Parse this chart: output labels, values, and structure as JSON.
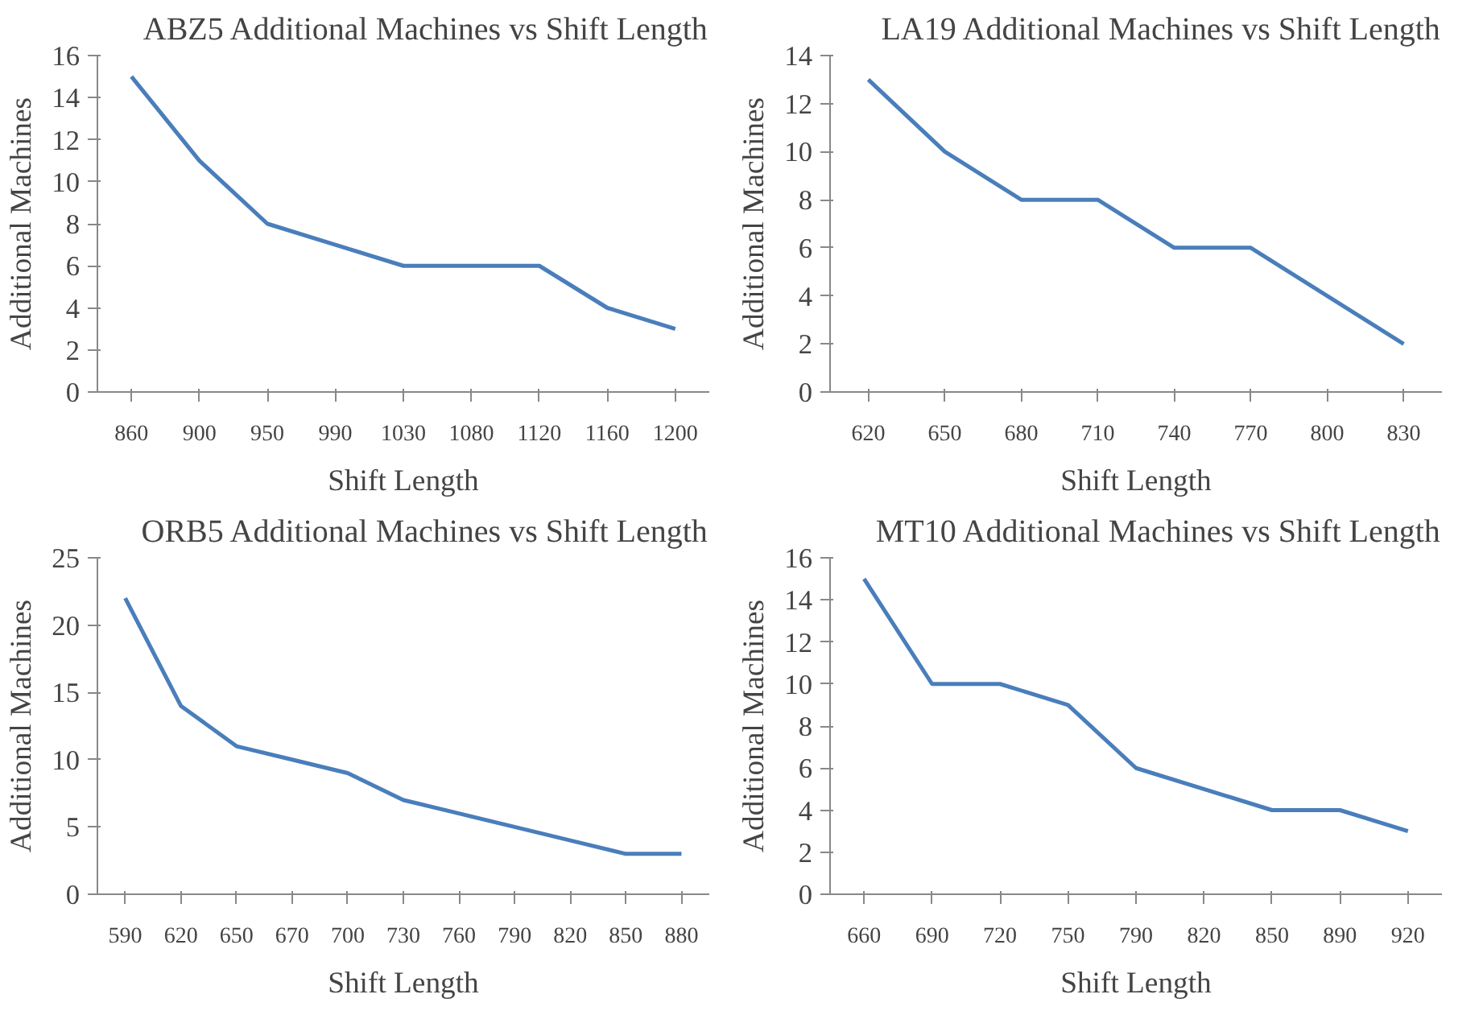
{
  "chart_data": [
    {
      "type": "line",
      "title": "ABZ5 Additional Machines vs Shift Length",
      "xlabel": "Shift Length",
      "ylabel": "Additional Machines",
      "categories": [
        "860",
        "900",
        "950",
        "990",
        "1030",
        "1080",
        "1120",
        "1160",
        "1200"
      ],
      "series": [
        {
          "color": "#4a7ebb",
          "values": [
            15,
            11,
            8,
            7,
            6,
            6,
            6,
            4,
            3
          ]
        }
      ],
      "ylim": [
        0,
        16
      ],
      "yticks": [
        0,
        2,
        4,
        6,
        8,
        10,
        12,
        14,
        16
      ],
      "grid": false,
      "marker": "none"
    },
    {
      "type": "line",
      "title": "LA19 Additional Machines vs Shift Length",
      "xlabel": "Shift Length",
      "ylabel": "Additional Machines",
      "categories": [
        "620",
        "650",
        "680",
        "710",
        "740",
        "770",
        "800",
        "830"
      ],
      "series": [
        {
          "color": "#4a7ebb",
          "values": [
            13,
            10,
            8,
            8,
            6,
            6,
            4,
            2
          ]
        }
      ],
      "ylim": [
        0,
        14
      ],
      "yticks": [
        0,
        2,
        4,
        6,
        8,
        10,
        12,
        14
      ],
      "grid": false,
      "marker": "none"
    },
    {
      "type": "line",
      "title": "ORB5 Additional Machines vs Shift Length",
      "xlabel": "Shift Length",
      "ylabel": "Additional Machines",
      "categories": [
        "590",
        "620",
        "650",
        "670",
        "700",
        "730",
        "760",
        "790",
        "820",
        "850",
        "880"
      ],
      "series": [
        {
          "color": "#4a7ebb",
          "values": [
            22,
            14,
            11,
            10,
            9,
            7,
            6,
            5,
            4,
            3,
            3
          ]
        }
      ],
      "ylim": [
        0,
        25
      ],
      "yticks": [
        0,
        5,
        10,
        15,
        20,
        25
      ],
      "grid": false,
      "marker": "none"
    },
    {
      "type": "line",
      "title": "MT10 Additional Machines vs Shift Length",
      "xlabel": "Shift Length",
      "ylabel": "Additional Machines",
      "categories": [
        "660",
        "690",
        "720",
        "750",
        "790",
        "820",
        "850",
        "890",
        "920"
      ],
      "series": [
        {
          "color": "#4a7ebb",
          "values": [
            15,
            10,
            10,
            9,
            6,
            5,
            4,
            4,
            3
          ]
        }
      ],
      "ylim": [
        0,
        16
      ],
      "yticks": [
        0,
        2,
        4,
        6,
        8,
        10,
        12,
        14,
        16
      ],
      "grid": false,
      "marker": "none"
    }
  ]
}
